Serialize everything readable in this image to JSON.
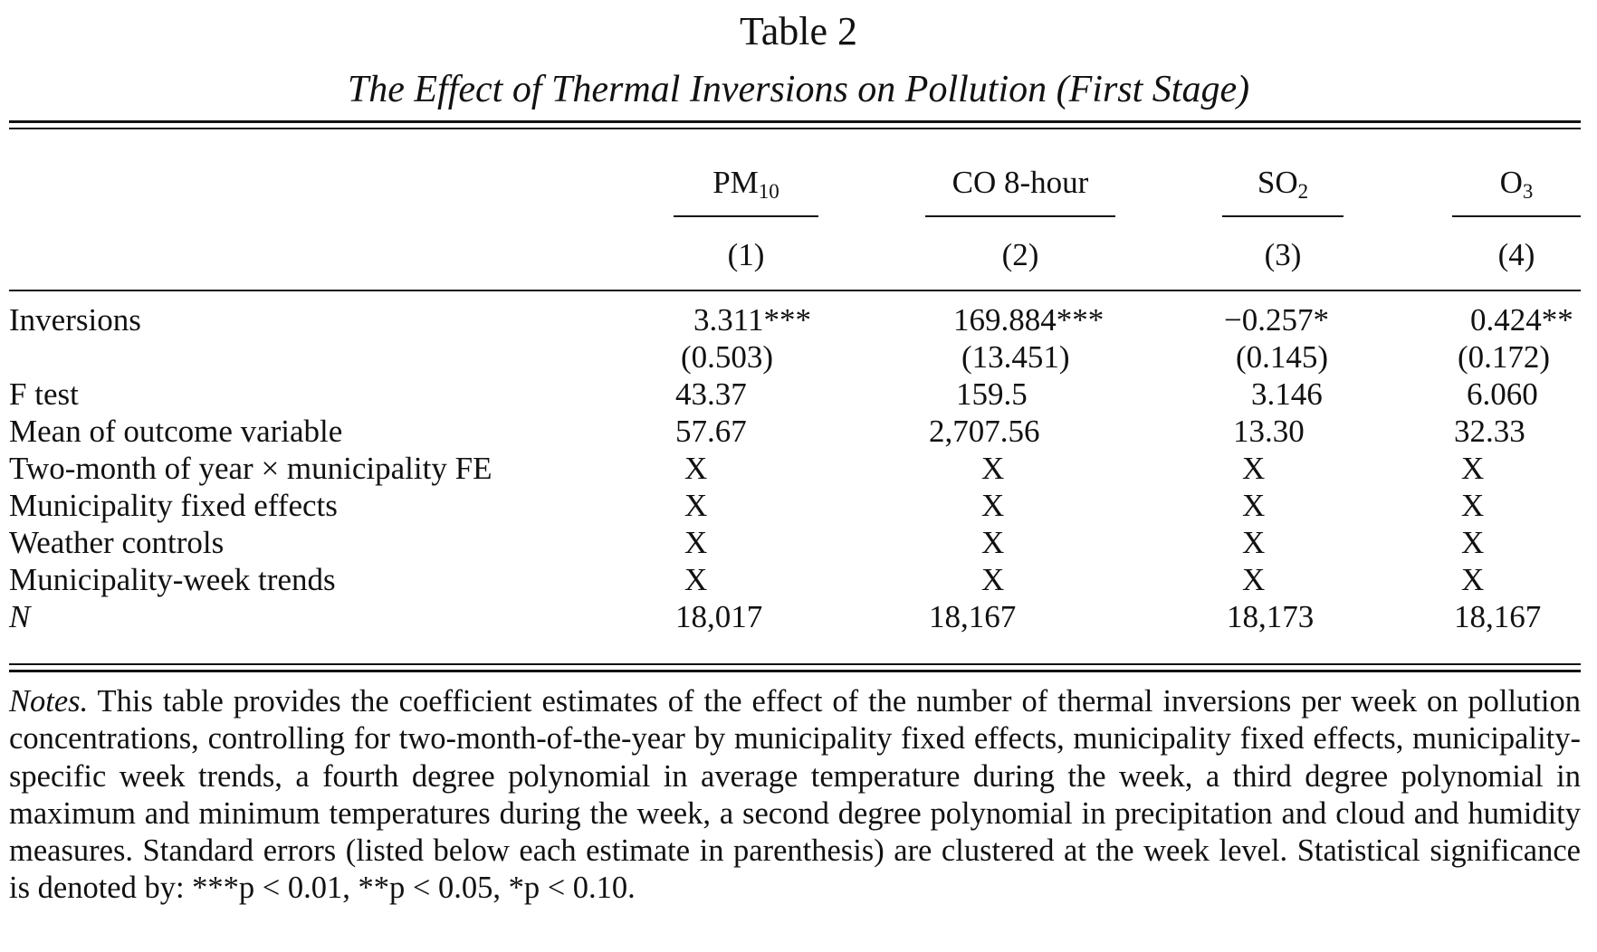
{
  "table": {
    "title": "Table 2",
    "subtitle": "The Effect of Thermal Inversions on Pollution (First Stage)",
    "columns": [
      {
        "name_main": "PM",
        "name_sub": "10",
        "number": "(1)"
      },
      {
        "name_main": "CO 8-hour",
        "name_sub": "",
        "number": "(2)"
      },
      {
        "name_main": "SO",
        "name_sub": "2",
        "number": "(3)"
      },
      {
        "name_main": "O",
        "name_sub": "3",
        "number": "(4)"
      }
    ],
    "rows": {
      "inversions": {
        "label": "Inversions",
        "values": [
          "3.311***",
          "169.884***",
          "−0.257*",
          "0.424**"
        ]
      },
      "inversions_se": {
        "values": [
          "(0.503)",
          "(13.451)",
          "(0.145)",
          "(0.172)"
        ]
      },
      "f_test": {
        "label": "F test",
        "values": [
          "43.37",
          "159.5",
          "3.146",
          "6.060"
        ]
      },
      "mean_outcome": {
        "label": "Mean of outcome variable",
        "values": [
          "57.67",
          "2,707.56",
          "13.30",
          "32.33"
        ]
      },
      "two_month_fe": {
        "label": "Two-month of year × municipality FE",
        "values": [
          "X",
          "X",
          "X",
          "X"
        ]
      },
      "municipality_fe": {
        "label": "Municipality fixed effects",
        "values": [
          "X",
          "X",
          "X",
          "X"
        ]
      },
      "weather_controls": {
        "label": "Weather controls",
        "values": [
          "X",
          "X",
          "X",
          "X"
        ]
      },
      "week_trends": {
        "label": "Municipality-week trends",
        "values": [
          "X",
          "X",
          "X",
          "X"
        ]
      },
      "n": {
        "label": "N",
        "values": [
          "18,017",
          "18,167",
          "18,173",
          "18,167"
        ]
      }
    },
    "notes": {
      "lead": "Notes.",
      "text": " This table provides the coefficient estimates of the effect of the number of thermal inversions per week on pollution concentrations, controlling for two-month-of-the-year by municipality fixed effects, municipality fixed effects, municipality-specific week trends, a fourth degree polynomial in average temperature during the week, a third degree polynomial in maximum and minimum temperatures during the week, a second degree polynomial in precipitation and cloud and humidity measures. Standard errors (listed below each estimate in parenthesis) are clustered at the week level. Statistical significance is denoted by: ***p < 0.01, **p < 0.05, *p < 0.10."
    }
  }
}
